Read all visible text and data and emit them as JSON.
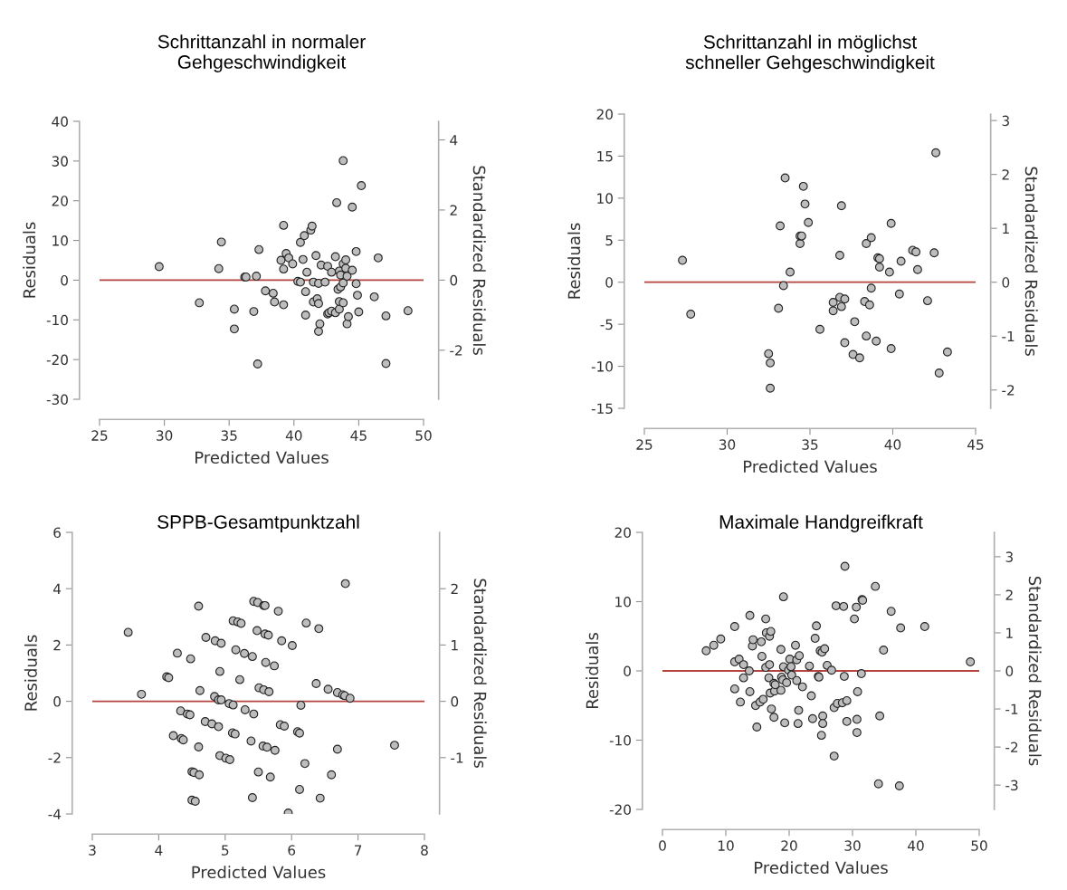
{
  "chart_data": [
    {
      "type": "scatter",
      "title": "Schrittanzahl in normaler\nGehgeschwindigkeit",
      "xlabel": "Predicted Values",
      "ylabel": "Residuals",
      "y2label": "Standardized Residuals",
      "marker": "circle",
      "xlim": [
        25,
        50
      ],
      "xticks": [
        25,
        30,
        35,
        40,
        45,
        50
      ],
      "ylim": [
        -30,
        40
      ],
      "yticks": [
        -30,
        -20,
        -10,
        0,
        10,
        20,
        30,
        40
      ],
      "y2lim": [
        -3.4,
        4.53
      ],
      "y2ticks": [
        -2,
        0,
        2,
        4
      ],
      "ref_lines": [
        {
          "axis": "y",
          "value": 0,
          "color": "#b5433f"
        }
      ],
      "series": [
        {
          "color": "#bdbdbd",
          "x": [
            29.6,
            32.7,
            34.2,
            34.4,
            35.4,
            35.4,
            36.2,
            36.3,
            36.9,
            37.1,
            37.2,
            37.3,
            37.8,
            38.4,
            38.5,
            39.2,
            39.2,
            39.2,
            39.0,
            39.4,
            39.6,
            39.9,
            40.3,
            40.5,
            40.5,
            40.7,
            40.8,
            40.9,
            40.9,
            41.0,
            41.3,
            41.4,
            41.5,
            41.5,
            41.7,
            41.8,
            41.9,
            41.9,
            42.0,
            41.9,
            42.1,
            42.4,
            42.6,
            42.6,
            42.7,
            42.9,
            42.9,
            43.2,
            43.2,
            43.3,
            43.4,
            43.5,
            43.5,
            43.6,
            43.5,
            43.6,
            43.8,
            43.8,
            43.8,
            43.8,
            44.0,
            44.0,
            44.1,
            44.1,
            44.2,
            44.5,
            44.5,
            44.8,
            44.8,
            44.9,
            45.0,
            45.2,
            46.2,
            46.5,
            47.1,
            47.1,
            48.8
          ],
          "values": [
            3.4,
            -5.7,
            2.9,
            9.6,
            -7.3,
            -12.3,
            0.8,
            0.8,
            -7.9,
            1.0,
            -21.1,
            7.7,
            -2.7,
            -3.3,
            -5.5,
            13.8,
            -6.2,
            2.8,
            5.0,
            6.7,
            5.6,
            4.1,
            -0.3,
            -0.5,
            9.5,
            5.2,
            11.2,
            -2.9,
            -8.8,
            2.0,
            12.6,
            13.6,
            -0.5,
            -5.5,
            6.2,
            -4.7,
            -5.9,
            -12.9,
            -11.0,
            -0.8,
            3.8,
            -0.5,
            3.5,
            -8.5,
            -8.2,
            2.0,
            -7.8,
            5.9,
            -8.2,
            19.5,
            -2.3,
            -7.3,
            2.3,
            1.3,
            -5.4,
            -1.7,
            -0.7,
            -5.7,
            30.1,
            4.1,
            5.1,
            3.0,
            -11.0,
            1.0,
            -9.2,
            18.4,
            2.5,
            7.2,
            -0.9,
            -3.8,
            -8.0,
            23.8,
            -4.2,
            5.6,
            -9.0,
            -21.0,
            -7.7
          ]
        }
      ]
    },
    {
      "type": "scatter",
      "title": "Schrittanzahl in möglichst\nschneller Gehgeschwindigkeit",
      "xlabel": "Predicted Values",
      "ylabel": "Residuals",
      "y2label": "Standardized Residuals",
      "marker": "circle",
      "xlim": [
        25,
        45
      ],
      "xticks": [
        25,
        30,
        35,
        40,
        45
      ],
      "ylim": [
        -15,
        20
      ],
      "yticks": [
        -15,
        -10,
        -5,
        0,
        5,
        10,
        15,
        20
      ],
      "y2lim": [
        -2.34,
        3.12
      ],
      "y2ticks": [
        -2,
        -1,
        0,
        1,
        2,
        3
      ],
      "ref_lines": [
        {
          "axis": "y",
          "value": 0,
          "color": "#b5433f"
        }
      ],
      "series": [
        {
          "color": "#bdbdbd",
          "x": [
            27.3,
            27.8,
            32.5,
            32.6,
            32.6,
            33.1,
            33.2,
            33.4,
            33.5,
            33.8,
            34.4,
            34.4,
            34.5,
            34.6,
            34.7,
            34.9,
            35.6,
            36.4,
            36.4,
            36.8,
            36.8,
            37.1,
            36.9,
            36.9,
            37.1,
            37.6,
            37.7,
            38.0,
            38.3,
            38.4,
            38.4,
            38.6,
            38.7,
            38.7,
            39.0,
            39.1,
            39.2,
            39.2,
            39.8,
            39.9,
            39.9,
            40.4,
            40.5,
            41.2,
            41.4,
            41.5,
            42.1,
            42.5,
            42.6,
            42.8,
            43.3
          ],
          "values": [
            2.6,
            -3.8,
            -8.5,
            -9.6,
            -12.6,
            -3.1,
            6.7,
            -0.4,
            12.4,
            1.2,
            4.6,
            5.5,
            5.5,
            11.4,
            9.3,
            7.1,
            -5.6,
            -3.4,
            -2.4,
            3.2,
            -1.8,
            -2.0,
            -2.9,
            9.1,
            -7.2,
            -8.6,
            -4.7,
            -9.0,
            -2.3,
            -6.4,
            4.6,
            -2.7,
            5.3,
            -0.7,
            -7.0,
            2.9,
            1.8,
            2.8,
            1.2,
            -7.9,
            7.0,
            -1.4,
            2.5,
            3.8,
            3.6,
            1.5,
            -2.2,
            3.5,
            15.4,
            -10.8,
            -8.3
          ]
        }
      ]
    },
    {
      "type": "scatter",
      "title": "SPPB-Gesamtpunktzahl",
      "xlabel": "Predicted Values",
      "ylabel": "Residuals",
      "y2label": "Standardized Residuals",
      "marker": "circle",
      "xlim": [
        3,
        8
      ],
      "xticks": [
        3,
        4,
        5,
        6,
        7,
        8
      ],
      "ylim": [
        -4,
        6
      ],
      "yticks": [
        -4,
        -2,
        0,
        2,
        4,
        6
      ],
      "y2lim": [
        -2,
        3
      ],
      "y2ticks": [
        -1,
        0,
        1,
        2
      ],
      "ref_lines": [
        {
          "axis": "y",
          "value": 0,
          "color": "#b5433f"
        }
      ],
      "series": [
        {
          "color": "#bdbdbd",
          "x": [
            3.54,
            3.74,
            4.12,
            4.15,
            4.22,
            4.28,
            4.33,
            4.34,
            4.37,
            4.43,
            4.47,
            4.48,
            4.5,
            4.53,
            4.61,
            4.5,
            4.55,
            4.6,
            4.6,
            4.62,
            4.7,
            4.71,
            4.8,
            4.84,
            4.9,
            4.94,
            4.85,
            4.94,
            4.9,
            4.92,
            4.92,
            5.01,
            5.07,
            5.06,
            5.12,
            5.11,
            5.15,
            5.12,
            5.19,
            5.24,
            5.16,
            5.22,
            5.29,
            5.41,
            5.3,
            5.39,
            5.41,
            5.43,
            5.43,
            5.49,
            5.58,
            5.6,
            5.48,
            5.5,
            5.51,
            5.58,
            5.66,
            5.57,
            5.63,
            5.75,
            5.6,
            5.65,
            5.61,
            5.68,
            5.74,
            5.8,
            5.83,
            5.89,
            5.85,
            5.95,
            6.01,
            6.09,
            6.12,
            6.12,
            6.14,
            6.2,
            6.22,
            6.37,
            6.41,
            6.43,
            6.55,
            6.6,
            6.69,
            6.69,
            6.77,
            6.8,
            6.88,
            6.81,
            7.55
          ],
          "values": [
            2.45,
            0.25,
            0.87,
            0.84,
            -1.22,
            1.71,
            -0.34,
            -1.32,
            -1.37,
            -0.45,
            -0.48,
            1.51,
            -2.5,
            -2.53,
            -2.61,
            -3.51,
            -3.55,
            -1.62,
            3.38,
            0.38,
            -0.72,
            2.27,
            -0.8,
            0.17,
            0.05,
            0.05,
            2.15,
            2.06,
            -0.9,
            1.06,
            -1.93,
            -2.02,
            -2.07,
            -0.08,
            -0.13,
            -1.12,
            -1.16,
            2.86,
            2.82,
            2.77,
            1.83,
            0.77,
            1.7,
            1.59,
            -0.3,
            -1.41,
            -3.42,
            -0.45,
            3.55,
            3.51,
            3.4,
            3.4,
            2.51,
            -2.51,
            0.48,
            0.41,
            0.34,
            -1.59,
            -1.63,
            -1.74,
            2.39,
            2.35,
            1.38,
            -2.69,
            1.26,
            3.2,
            -0.83,
            -0.88,
            2.15,
            -3.97,
            1.98,
            -1.08,
            -1.13,
            -3.13,
            -0.14,
            -2.21,
            2.78,
            0.63,
            2.58,
            -3.44,
            0.43,
            -2.61,
            -1.7,
            0.31,
            0.23,
            0.2,
            0.11,
            4.18,
            -1.56
          ]
        }
      ]
    },
    {
      "type": "scatter",
      "title": "Maximale Handgreifkraft",
      "xlabel": "Predicted Values",
      "ylabel": "Residuals",
      "y2label": "Standardized Residuals",
      "marker": "circle",
      "xlim": [
        0,
        50
      ],
      "xticks": [
        0,
        10,
        20,
        30,
        40,
        50
      ],
      "ylim": [
        -20,
        20
      ],
      "yticks": [
        -20,
        -10,
        0,
        10,
        20
      ],
      "y2lim": [
        -3.64,
        3.64
      ],
      "y2ticks": [
        -3,
        -2,
        -1,
        0,
        1,
        2,
        3
      ],
      "ref_lines": [
        {
          "axis": "y",
          "value": 0,
          "color": "#b5433f"
        }
      ],
      "series": [
        {
          "color": "#bdbdbd",
          "x": [
            6.9,
            8.1,
            9.2,
            11.4,
            11.4,
            12.1,
            11.4,
            12.3,
            12.8,
            12.8,
            13.7,
            13.8,
            13.8,
            14.2,
            14.3,
            14.7,
            15.4,
            15.9,
            14.9,
            15.6,
            15.7,
            16.3,
            16.3,
            16.9,
            16.4,
            16.9,
            17.1,
            16.8,
            17.0,
            17.7,
            18.7,
            17.2,
            17.6,
            17.8,
            17.6,
            18.7,
            18.8,
            19.0,
            19.6,
            19.1,
            19.1,
            19.3,
            19.9,
            20.1,
            20.3,
            20.4,
            21.0,
            21.2,
            21.6,
            21.2,
            21.4,
            21.5,
            22.1,
            23.2,
            23.5,
            23.7,
            24.1,
            24.3,
            24.6,
            24.7,
            24.9,
            25.2,
            25.6,
            25.1,
            25.3,
            25.3,
            26.0,
            26.7,
            27.1,
            27.6,
            28.4,
            29.1,
            27.1,
            27.4,
            28.6,
            28.7,
            28.8,
            29.1,
            30.3,
            30.6,
            30.8,
            30.7,
            30.7,
            31.4,
            31.5,
            31.6,
            33.6,
            34.1,
            34.3,
            34.9,
            36.1,
            37.4,
            37.6,
            41.4,
            48.6
          ],
          "values": [
            2.9,
            3.7,
            4.6,
            6.4,
            1.3,
            1.7,
            -2.6,
            -4.5,
            0.9,
            -1.0,
            0.0,
            8.0,
            -3.0,
            3.6,
            4.5,
            -5.0,
            -4.5,
            -4.1,
            -8.1,
            4.2,
            2.1,
            7.5,
            0.5,
            0.9,
            5.5,
            5.0,
            5.7,
            -1.0,
            -3.2,
            -2.9,
            -2.8,
            -5.5,
            -1.8,
            -2.0,
            -6.7,
            3.1,
            -0.9,
            -1.3,
            -1.7,
            10.7,
            0.6,
            -7.5,
            0.1,
            1.7,
            0.6,
            -0.6,
            3.7,
            1.6,
            2.2,
            -1.4,
            -7.6,
            -5.7,
            -2.3,
            0.7,
            -3.6,
            -6.9,
            4.7,
            6.5,
            -0.8,
            -0.9,
            2.9,
            2.7,
            3.2,
            -9.3,
            -6.5,
            -7.6,
            0.8,
            0.1,
            -5.3,
            -4.7,
            -4.6,
            -4.3,
            -12.3,
            9.4,
            9.3,
            -0.8,
            15.1,
            -7.3,
            7.5,
            9.2,
            -3.0,
            -7.0,
            -8.9,
            -0.4,
            10.3,
            10.2,
            12.2,
            -16.3,
            -6.5,
            3.0,
            8.6,
            -16.6,
            6.2,
            6.4,
            1.3
          ]
        }
      ]
    }
  ]
}
